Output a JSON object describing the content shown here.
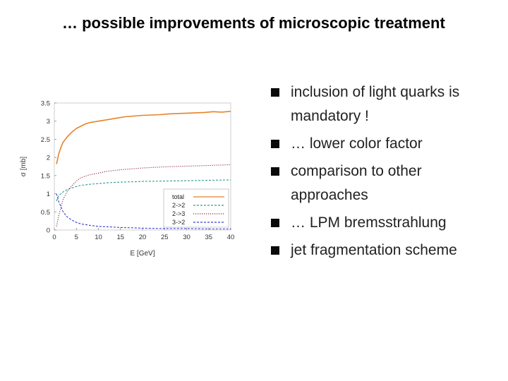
{
  "slide": {
    "title": "… possible improvements of microscopic treatment"
  },
  "bullets": [
    "inclusion of light quarks is mandatory !",
    "… lower color factor",
    "comparison to other approaches",
    "… LPM bremsstrahlung",
    "jet fragmentation scheme"
  ],
  "chart_data": {
    "type": "line",
    "title": "",
    "xlabel": "E [GeV]",
    "ylabel": "σ [mb]",
    "xlim": [
      0,
      40
    ],
    "ylim": [
      0,
      3.5
    ],
    "xticks": [
      0,
      5,
      10,
      15,
      20,
      25,
      30,
      35,
      40
    ],
    "yticks": [
      0,
      0.5,
      1,
      1.5,
      2,
      2.5,
      3,
      3.5
    ],
    "grid": false,
    "legend_position": "bottom-right",
    "series": [
      {
        "name": "total",
        "color": "#e8822a",
        "style": "solid",
        "x": [
          0.5,
          1,
          1.5,
          2,
          3,
          4,
          5,
          6,
          7,
          8,
          10,
          12,
          14,
          16,
          18,
          20,
          22,
          24,
          26,
          28,
          30,
          32,
          34,
          36,
          38,
          40
        ],
        "y": [
          1.82,
          2.1,
          2.28,
          2.42,
          2.58,
          2.7,
          2.8,
          2.86,
          2.92,
          2.96,
          3.0,
          3.04,
          3.08,
          3.12,
          3.14,
          3.16,
          3.17,
          3.18,
          3.2,
          3.21,
          3.22,
          3.23,
          3.24,
          3.26,
          3.25,
          3.27
        ]
      },
      {
        "name": "2->2",
        "color": "#2a9d8f",
        "style": "dashed",
        "x": [
          0.5,
          1,
          2,
          3,
          4,
          5,
          6,
          8,
          10,
          12,
          15,
          18,
          20,
          25,
          30,
          35,
          40
        ],
        "y": [
          0.8,
          0.95,
          1.05,
          1.12,
          1.16,
          1.2,
          1.23,
          1.26,
          1.28,
          1.3,
          1.32,
          1.33,
          1.34,
          1.35,
          1.36,
          1.37,
          1.38
        ]
      },
      {
        "name": "2->3",
        "color": "#8b2a3a",
        "style": "dotted",
        "x": [
          0.5,
          1,
          2,
          3,
          4,
          5,
          6,
          8,
          10,
          12,
          15,
          18,
          20,
          25,
          30,
          35,
          40
        ],
        "y": [
          0.1,
          0.4,
          0.85,
          1.08,
          1.22,
          1.35,
          1.44,
          1.52,
          1.57,
          1.62,
          1.66,
          1.69,
          1.71,
          1.74,
          1.76,
          1.78,
          1.8
        ]
      },
      {
        "name": "3->2",
        "color": "#3a3ad0",
        "style": "dashed",
        "x": [
          0.5,
          1,
          2,
          3,
          4,
          5,
          6,
          8,
          10,
          12,
          15,
          18,
          20,
          25,
          30,
          35,
          40
        ],
        "y": [
          1.0,
          0.78,
          0.5,
          0.35,
          0.27,
          0.21,
          0.17,
          0.13,
          0.1,
          0.09,
          0.07,
          0.06,
          0.05,
          0.04,
          0.04,
          0.03,
          0.03
        ]
      }
    ]
  }
}
